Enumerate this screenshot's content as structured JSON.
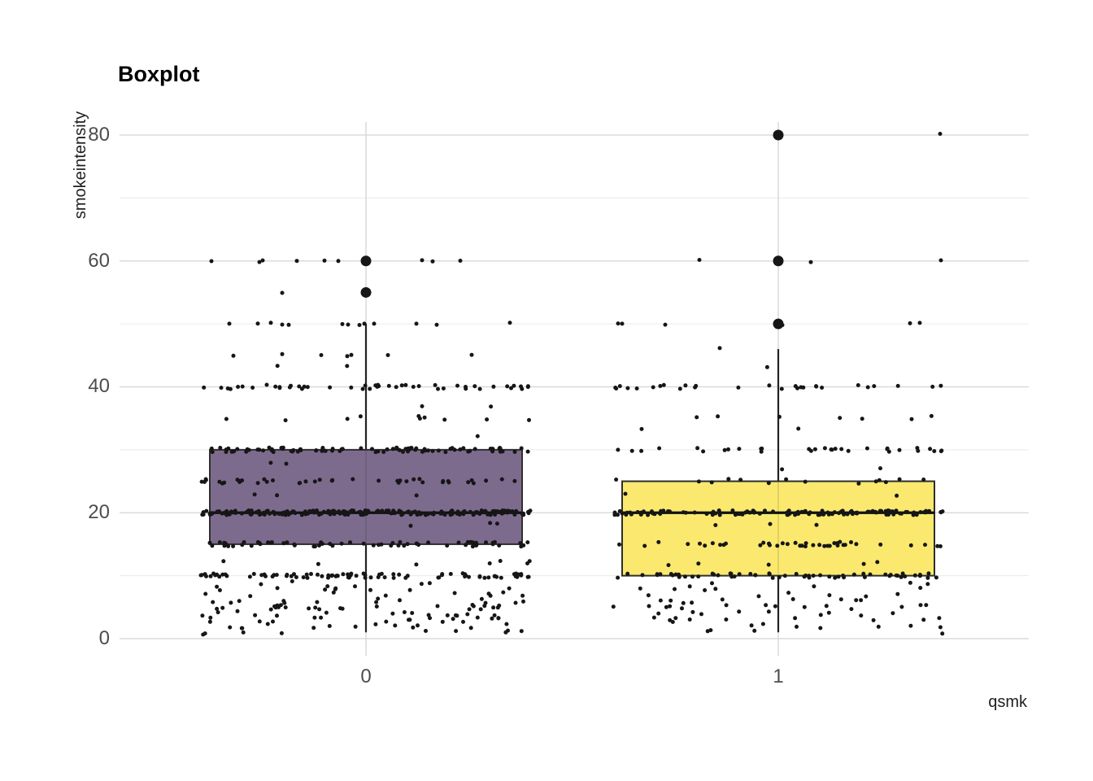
{
  "chart_data": {
    "type": "boxplot",
    "title": "Boxplot",
    "xlabel": "qsmk",
    "ylabel": "smokeintensity",
    "x_categories": [
      "0",
      "1"
    ],
    "y_ticks": [
      "80",
      "60",
      "40",
      "20",
      "0"
    ],
    "y_tick_values": [
      80,
      60,
      40,
      20,
      0
    ],
    "ylim": [
      0,
      84
    ],
    "grid": {
      "major_values": [
        0,
        20,
        40,
        60,
        80
      ],
      "minor_values": [
        10,
        30,
        50,
        70
      ],
      "vertical_at_categories": true
    },
    "legend": "none",
    "colors": {
      "box_fill_0": "#7D6B8E",
      "box_fill_1": "#FAE96E",
      "box_stroke": "#2e2e2e",
      "median_stroke": "#111111",
      "whisker_stroke": "#222222",
      "point": "#161616",
      "grid_major": "#d4d4d4",
      "grid_minor": "#eaeaea",
      "tick_label": "#4d4d4d",
      "axis_title": "#1f1f1f",
      "title": "#000000",
      "background": "#ffffff"
    },
    "groups": [
      {
        "category": "0",
        "fill": "#7D6B8E",
        "box": {
          "q1": 15,
          "median": 20,
          "q3": 30,
          "whisker_low": 1,
          "whisker_high": 50
        },
        "outliers": [
          55,
          60
        ],
        "value_counts": [
          [
            1,
            9
          ],
          [
            2,
            13
          ],
          [
            3,
            17
          ],
          [
            4,
            15
          ],
          [
            5,
            24
          ],
          [
            6,
            13
          ],
          [
            7,
            9
          ],
          [
            8,
            11
          ],
          [
            9,
            4
          ],
          [
            10,
            85
          ],
          [
            12,
            7
          ],
          [
            15,
            65
          ],
          [
            18,
            3
          ],
          [
            20,
            210
          ],
          [
            23,
            3
          ],
          [
            25,
            42
          ],
          [
            28,
            2
          ],
          [
            30,
            85
          ],
          [
            32,
            1
          ],
          [
            35,
            10
          ],
          [
            37,
            2
          ],
          [
            40,
            48
          ],
          [
            43,
            2
          ]
        ],
        "high_points": [
          {
            "v": 45,
            "dx": [
              -163,
              -103,
              -55,
              -23,
              -18,
              27,
              130
            ]
          },
          {
            "v": 50,
            "dx": [
              -168,
              -133,
              -117,
              -103,
              -95,
              -29,
              -22,
              -8,
              -2,
              10,
              62,
              87,
              177
            ]
          },
          {
            "v": 55,
            "dx": [
              -103
            ]
          },
          {
            "v": 60,
            "dx": [
              -190,
              -131,
              -127,
              -85,
              -51,
              -34,
              69,
              82,
              116
            ]
          }
        ]
      },
      {
        "category": "1",
        "fill": "#FAE96E",
        "box": {
          "q1": 10,
          "median": 20,
          "q3": 25,
          "whisker_low": 1,
          "whisker_high": 46
        },
        "outliers": [
          50,
          60,
          80
        ],
        "value_counts": [
          [
            1,
            4
          ],
          [
            2,
            7
          ],
          [
            3,
            10
          ],
          [
            4,
            9
          ],
          [
            5,
            14
          ],
          [
            6,
            9
          ],
          [
            7,
            6
          ],
          [
            8,
            7
          ],
          [
            9,
            3
          ],
          [
            10,
            60
          ],
          [
            12,
            5
          ],
          [
            15,
            40
          ],
          [
            18,
            3
          ],
          [
            20,
            120
          ],
          [
            23,
            2
          ],
          [
            25,
            14
          ],
          [
            27,
            2
          ],
          [
            30,
            32
          ],
          [
            33,
            2
          ],
          [
            35,
            7
          ],
          [
            40,
            28
          ],
          [
            43,
            1
          ]
        ],
        "high_points": [
          {
            "v": 46,
            "dx": [
              -72
            ]
          },
          {
            "v": 50,
            "dx": [
              -197,
              -192,
              -139,
              5,
              162,
              174
            ]
          },
          {
            "v": 60,
            "dx": [
              -97,
              40,
              200
            ]
          },
          {
            "v": 80,
            "dx": [
              199
            ]
          }
        ]
      }
    ]
  }
}
